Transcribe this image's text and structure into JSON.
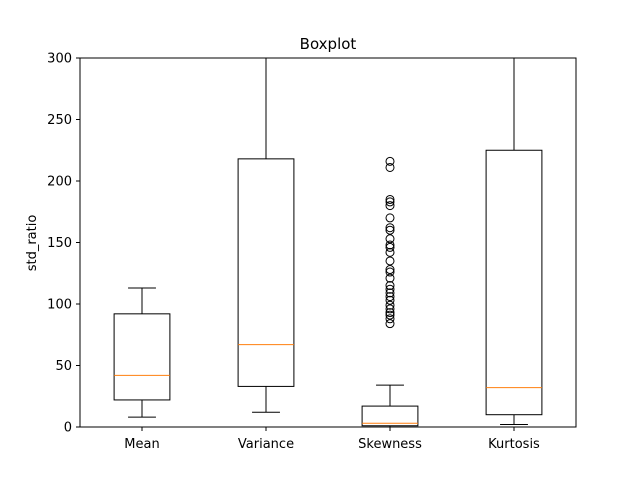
{
  "chart_data": {
    "type": "boxplot",
    "title": "Boxplot",
    "xlabel": "",
    "ylabel": "std_ratio",
    "ylim": [
      0,
      300
    ],
    "yticks": [
      0,
      50,
      100,
      150,
      200,
      250,
      300
    ],
    "grid": false,
    "colors": {
      "box": "#000000",
      "median": "#ff7f0e",
      "background": "#ffffff"
    },
    "categories": [
      "Mean",
      "Variance",
      "Skewness",
      "Kurtosis"
    ],
    "boxes": [
      {
        "category": "Mean",
        "whisker_low": 8,
        "q1": 22,
        "median": 42,
        "q3": 92,
        "whisker_high": 113,
        "outliers": []
      },
      {
        "category": "Variance",
        "whisker_low": 12,
        "q1": 33,
        "median": 67,
        "q3": 218,
        "whisker_high": 300,
        "outliers": []
      },
      {
        "category": "Skewness",
        "whisker_low": 0,
        "q1": 1,
        "median": 3,
        "q3": 17,
        "whisker_high": 34,
        "outliers": [
          84,
          88,
          91,
          93,
          96,
          99,
          103,
          106,
          109,
          112,
          115,
          121,
          126,
          128,
          135,
          142,
          146,
          148,
          153,
          160,
          162,
          170,
          180,
          183,
          185,
          211,
          216
        ]
      },
      {
        "category": "Kurtosis",
        "whisker_low": 2,
        "q1": 10,
        "median": 32,
        "q3": 225,
        "whisker_high": 300,
        "outliers": []
      }
    ]
  }
}
